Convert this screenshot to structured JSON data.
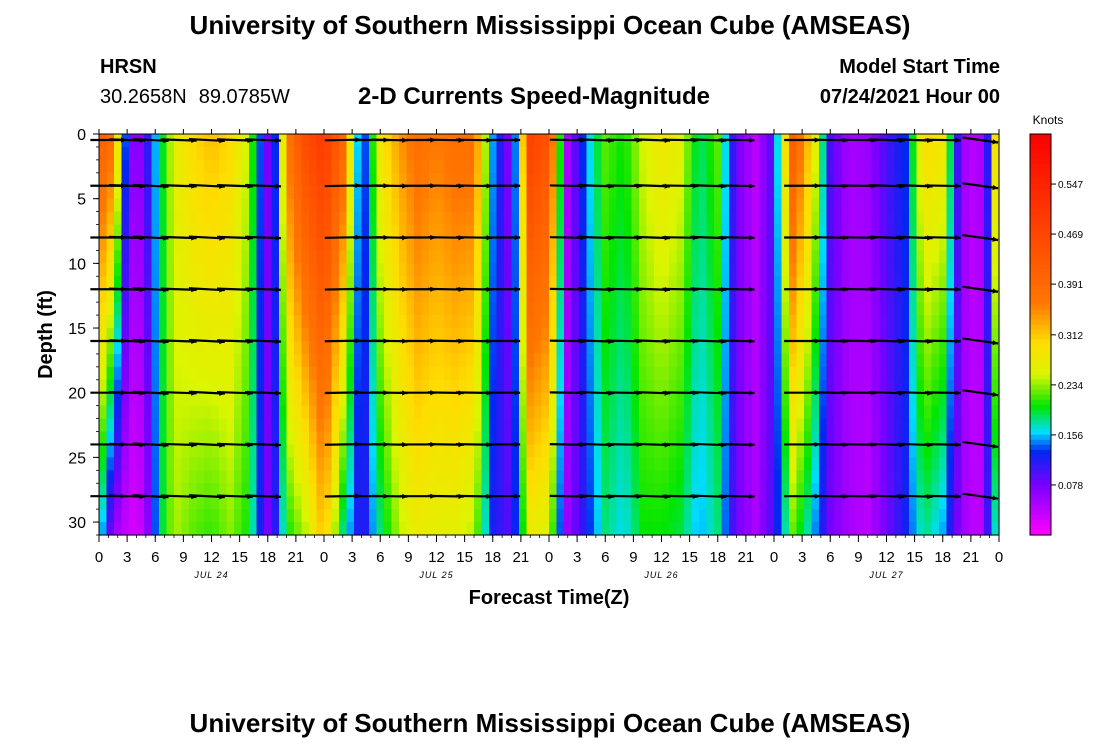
{
  "header": {
    "title": "University of Southern Mississippi Ocean Cube (AMSEAS)",
    "station": "HRSN",
    "lat": "30.2658N",
    "lon": "89.0785W",
    "model_start_label": "Model Start Time",
    "model_start_value": "07/24/2021 Hour 00"
  },
  "footer": {
    "title": "University of Southern Mississippi Ocean Cube (AMSEAS)"
  },
  "chart_data": {
    "type": "heatmap",
    "title": "2-D Currents Speed-Magnitude",
    "xlabel": "Forecast Time(Z)",
    "ylabel": "Depth (ft)",
    "x_hours_range": [
      0,
      96
    ],
    "x_tick_step_hours": 3,
    "x_tick_labels": [
      "0",
      "3",
      "6",
      "9",
      "12",
      "15",
      "18",
      "21",
      "0",
      "3",
      "6",
      "9",
      "12",
      "15",
      "18",
      "21",
      "0",
      "3",
      "6",
      "9",
      "12",
      "15",
      "18",
      "21",
      "0",
      "3",
      "6",
      "9",
      "12",
      "15",
      "18",
      "21",
      "0"
    ],
    "day_labels": [
      {
        "text": "JUL 24",
        "hour": 12
      },
      {
        "text": "JUL 25",
        "hour": 36
      },
      {
        "text": "JUL 26",
        "hour": 60
      },
      {
        "text": "JUL 27",
        "hour": 84
      }
    ],
    "y_range": [
      0,
      31
    ],
    "y_ticks": [
      0,
      5,
      10,
      15,
      20,
      25,
      30
    ],
    "colorbar": {
      "unit_label": "Knots",
      "range": [
        0,
        0.625
      ],
      "tick_labels": [
        "0.547",
        "0.469",
        "0.391",
        "0.312",
        "0.234",
        "0.156",
        "0.078"
      ],
      "tick_values": [
        0.547,
        0.469,
        0.391,
        0.312,
        0.234,
        0.156,
        0.078
      ]
    },
    "profile_hours": [
      0,
      1.5,
      3,
      4,
      5,
      6.5,
      8,
      10,
      12,
      14,
      16,
      17,
      18,
      19,
      20,
      22,
      24,
      26,
      28,
      30,
      32,
      34,
      36,
      38,
      40,
      42,
      44,
      46,
      48,
      50,
      52,
      54,
      56,
      58,
      60,
      62,
      64,
      66,
      68,
      70,
      72,
      74,
      76,
      78,
      80,
      82,
      84,
      86,
      88,
      90,
      92,
      93,
      94,
      95,
      96
    ],
    "speed_knots_top": [
      0.42,
      0.38,
      0.1,
      0.05,
      0.1,
      0.18,
      0.26,
      0.3,
      0.32,
      0.3,
      0.24,
      0.15,
      0.08,
      0.14,
      0.36,
      0.46,
      0.5,
      0.4,
      0.1,
      0.28,
      0.34,
      0.38,
      0.36,
      0.38,
      0.38,
      0.15,
      0.06,
      0.48,
      0.44,
      0.05,
      0.15,
      0.22,
      0.2,
      0.25,
      0.28,
      0.26,
      0.18,
      0.22,
      0.08,
      0.04,
      0.1,
      0.42,
      0.3,
      0.1,
      0.05,
      0.06,
      0.1,
      0.13,
      0.3,
      0.28,
      0.06,
      0.04,
      0.05,
      0.13,
      0.4
    ],
    "speed_knots_bottom": [
      0.18,
      0.06,
      0.03,
      0.02,
      0.05,
      0.18,
      0.24,
      0.22,
      0.21,
      0.23,
      0.2,
      0.13,
      0.08,
      0.12,
      0.2,
      0.24,
      0.32,
      0.18,
      0.1,
      0.18,
      0.24,
      0.27,
      0.26,
      0.26,
      0.24,
      0.12,
      0.09,
      0.27,
      0.25,
      0.06,
      0.12,
      0.18,
      0.16,
      0.2,
      0.2,
      0.19,
      0.15,
      0.18,
      0.08,
      0.05,
      0.1,
      0.22,
      0.16,
      0.08,
      0.05,
      0.04,
      0.08,
      0.12,
      0.18,
      0.15,
      0.06,
      0.04,
      0.04,
      0.12,
      0.2
    ],
    "vector_hours": [
      1,
      3,
      5.5,
      8.5,
      11.5,
      14.5,
      17.5,
      26,
      29,
      31,
      34,
      37,
      40,
      43,
      50,
      53,
      56,
      59,
      62,
      65,
      68,
      75,
      78,
      81,
      84,
      87,
      90,
      94
    ],
    "vector_depths_ft": [
      0,
      4,
      8,
      12,
      16,
      20,
      24,
      28
    ],
    "vector_direction_deg": [
      0,
      2,
      3,
      2,
      3,
      2,
      2,
      -1,
      0,
      1,
      0,
      1,
      1,
      0,
      1,
      2,
      1,
      2,
      1,
      2,
      1,
      0,
      1,
      1,
      2,
      2,
      1,
      8
    ]
  }
}
